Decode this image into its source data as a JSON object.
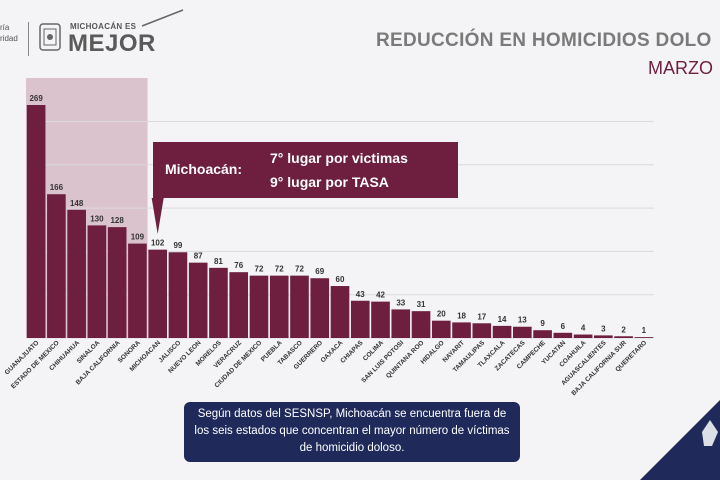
{
  "header": {
    "gov_text_line1": "ría",
    "gov_text_line2": "ridad",
    "brand_top": "MICHOACÁN ES",
    "brand_main": "MEJOR",
    "title": "REDUCCIÓN EN HOMICIDIOS DOLO",
    "subtitle": "MARZO"
  },
  "callout": {
    "state": "Michoacán:",
    "line1": "7° lugar por victimas",
    "line2": "9° lugar por TASA"
  },
  "note": {
    "text": "Según datos del SESNSP, Michoacán se encuentra fuera de los seis estados que concentran el mayor número de víctimas de homicidio doloso."
  },
  "colors": {
    "bar": "#6e1f3f",
    "highlight": "#d2b3bd",
    "note_bg": "#1f2a5a"
  },
  "chart_data": {
    "type": "bar",
    "title": "REDUCCIÓN EN HOMICIDIOS DOLO",
    "xlabel": "",
    "ylabel": "",
    "ylim": [
      0,
      280
    ],
    "grid": true,
    "highlight_first_n": 6,
    "categories": [
      "GUANAJUATO",
      "ESTADO DE MEXICO",
      "CHIHUAHUA",
      "SINALOA",
      "BAJA CALIFORNIA",
      "SONORA",
      "MICHOACAN",
      "JALISCO",
      "NUEVO LEON",
      "MORELOS",
      "VERACRUZ",
      "CIUDAD DE MEXICO",
      "PUEBLA",
      "TABASCO",
      "GUERRERO",
      "OAXACA",
      "CHIAPAS",
      "COLIMA",
      "SAN LUIS POTOSI",
      "QUINTANA ROO",
      "HIDALGO",
      "NAYARIT",
      "TAMAULIPAS",
      "TLAXCALA",
      "ZACATECAS",
      "CAMPECHE",
      "YUCATAN",
      "COAHUILA",
      "AGUASCALIENTES",
      "BAJA CALIFORNIA SUR",
      "QUERETARO"
    ],
    "values": [
      269,
      166,
      148,
      130,
      128,
      109,
      102,
      99,
      87,
      81,
      76,
      72,
      72,
      72,
      69,
      60,
      43,
      42,
      33,
      31,
      20,
      18,
      17,
      14,
      13,
      9,
      6,
      4,
      3,
      2,
      1
    ]
  }
}
